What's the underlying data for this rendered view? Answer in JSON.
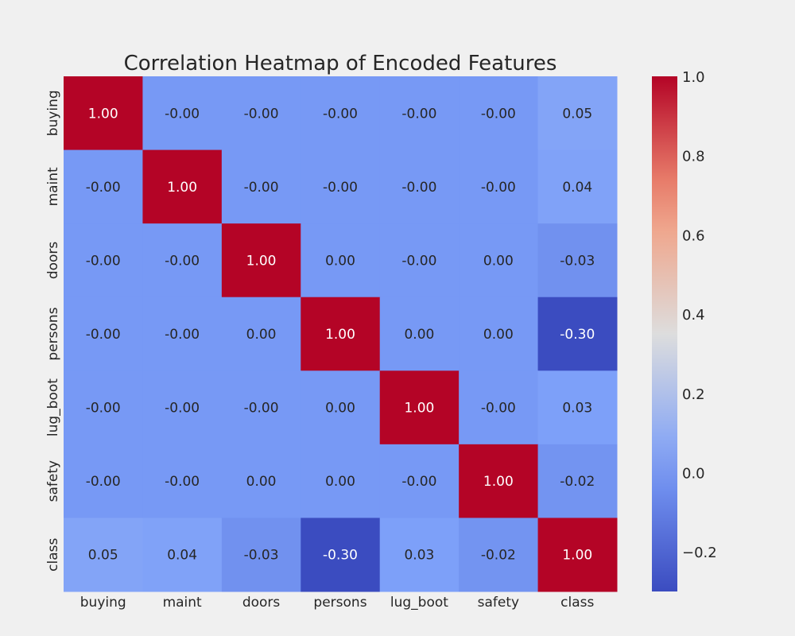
{
  "chart_data": {
    "type": "heatmap",
    "title": "Correlation Heatmap of Encoded Features",
    "xlabel": "",
    "ylabel": "",
    "categories": [
      "buying",
      "maint",
      "doors",
      "persons",
      "lug_boot",
      "safety",
      "class"
    ],
    "values": [
      [
        1.0,
        -0.0,
        -0.0,
        -0.0,
        -0.0,
        -0.0,
        0.05
      ],
      [
        -0.0,
        1.0,
        -0.0,
        -0.0,
        -0.0,
        -0.0,
        0.04
      ],
      [
        -0.0,
        -0.0,
        1.0,
        0.0,
        -0.0,
        0.0,
        -0.03
      ],
      [
        -0.0,
        -0.0,
        0.0,
        1.0,
        0.0,
        0.0,
        -0.3
      ],
      [
        -0.0,
        -0.0,
        -0.0,
        0.0,
        1.0,
        -0.0,
        0.03
      ],
      [
        -0.0,
        -0.0,
        0.0,
        0.0,
        -0.0,
        1.0,
        -0.02
      ],
      [
        0.05,
        0.04,
        -0.03,
        -0.3,
        0.03,
        -0.02,
        1.0
      ]
    ],
    "labels": [
      [
        "1.00",
        "-0.00",
        "-0.00",
        "-0.00",
        "-0.00",
        "-0.00",
        "0.05"
      ],
      [
        "-0.00",
        "1.00",
        "-0.00",
        "-0.00",
        "-0.00",
        "-0.00",
        "0.04"
      ],
      [
        "-0.00",
        "-0.00",
        "1.00",
        "0.00",
        "-0.00",
        "0.00",
        "-0.03"
      ],
      [
        "-0.00",
        "-0.00",
        "0.00",
        "1.00",
        "0.00",
        "0.00",
        "-0.30"
      ],
      [
        "-0.00",
        "-0.00",
        "-0.00",
        "0.00",
        "1.00",
        "-0.00",
        "0.03"
      ],
      [
        "-0.00",
        "-0.00",
        "0.00",
        "0.00",
        "-0.00",
        "1.00",
        "-0.02"
      ],
      [
        "0.05",
        "0.04",
        "-0.03",
        "-0.30",
        "0.03",
        "-0.02",
        "1.00"
      ]
    ],
    "colormap": "coolwarm",
    "vmin": -0.3,
    "vmax": 1.0,
    "colorbar": {
      "ticks": [
        1.0,
        0.8,
        0.6,
        0.4,
        0.2,
        0.0,
        -0.2
      ],
      "tick_labels": [
        "1.0",
        "0.8",
        "0.6",
        "0.4",
        "0.2",
        "0.0",
        "−0.2"
      ]
    },
    "colors": {
      "background": "#f0f0f0",
      "text_dark": "#262626",
      "text_light": "#ffffff"
    }
  }
}
